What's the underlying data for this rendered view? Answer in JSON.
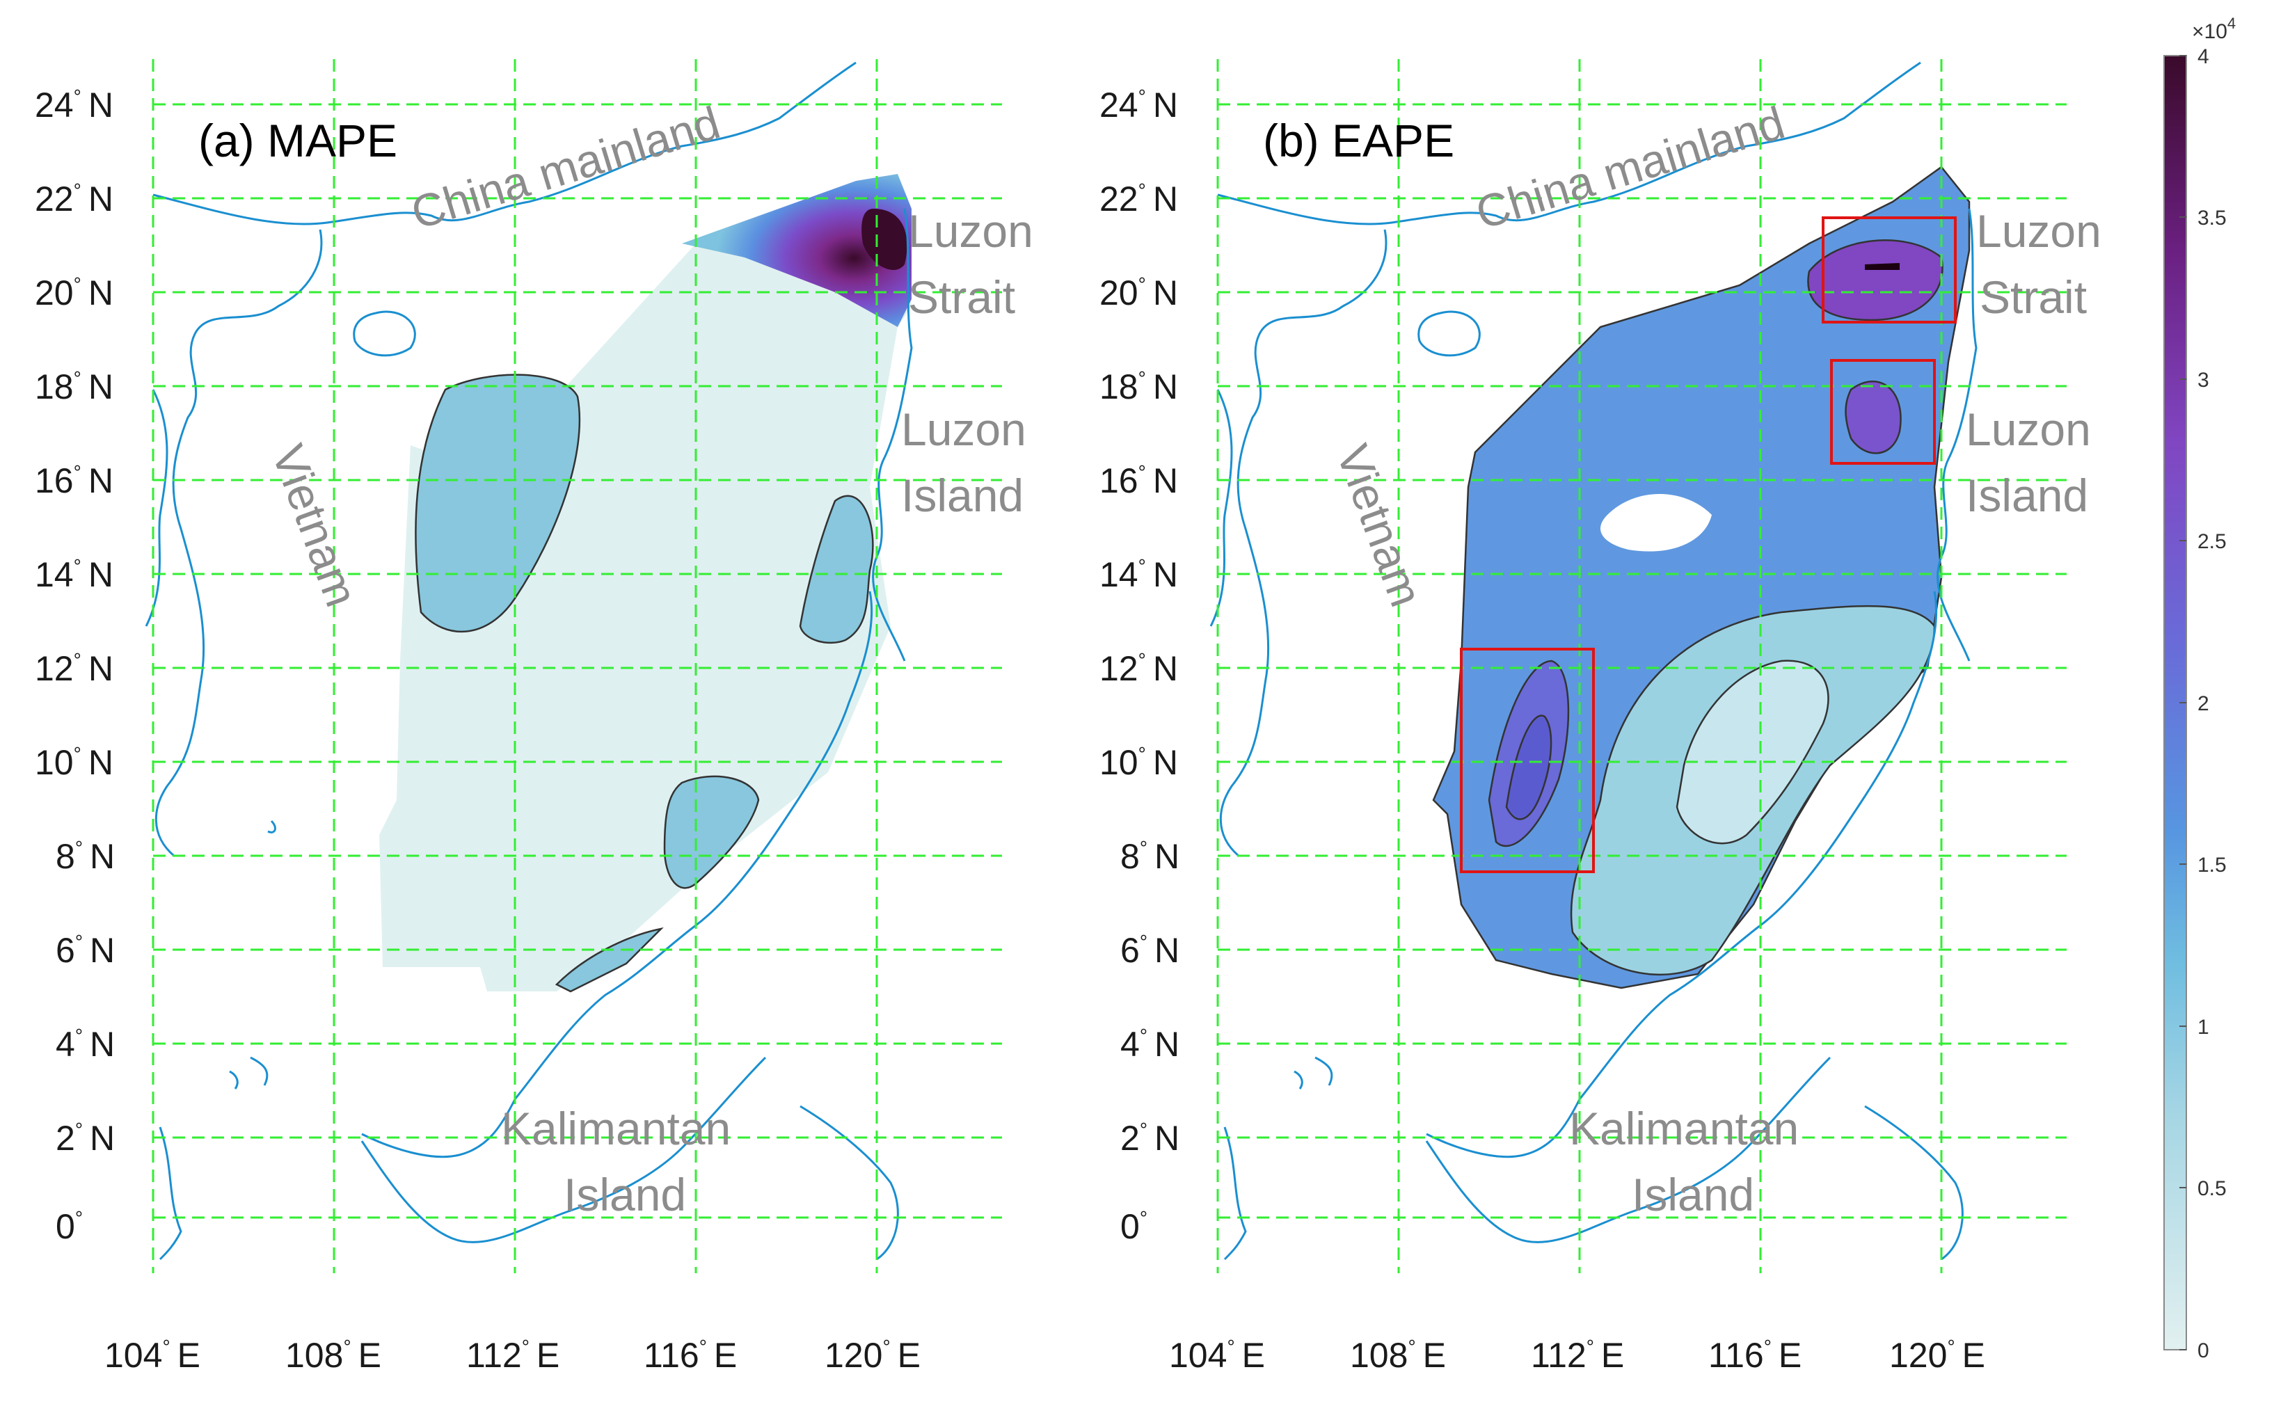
{
  "panels": [
    {
      "title": "(a) MAPE",
      "lat_labels": [
        "24",
        "22",
        "20",
        "18",
        "16",
        "14",
        "12",
        "10",
        "8",
        "6",
        "4",
        "2",
        "0"
      ],
      "lat_suffix": [
        "N",
        "N",
        "N",
        "N",
        "N",
        "N",
        "N",
        "N",
        "N",
        "N",
        "N",
        "N",
        ""
      ],
      "lon_labels": [
        "104",
        "108",
        "112",
        "116",
        "120"
      ],
      "lon_suffix": "E",
      "places": {
        "china": "China mainland",
        "luzon_strait_1": "Luzon",
        "luzon_strait_2": "Strait",
        "luzon_island_1": "Luzon",
        "luzon_island_2": "Island",
        "vietnam": "Vietnam",
        "kalimantan_1": "Kalimantan",
        "kalimantan_2": "Island"
      }
    },
    {
      "title": "(b) EAPE",
      "lat_labels": [
        "24",
        "22",
        "20",
        "18",
        "16",
        "14",
        "12",
        "10",
        "8",
        "6",
        "4",
        "2",
        "0"
      ],
      "lat_suffix": [
        "N",
        "N",
        "N",
        "N",
        "N",
        "N",
        "N",
        "N",
        "N",
        "N",
        "N",
        "N",
        ""
      ],
      "lon_labels": [
        "104",
        "108",
        "112",
        "116",
        "120"
      ],
      "lon_suffix": "E",
      "places": {
        "china": "China mainland",
        "luzon_strait_1": "Luzon",
        "luzon_strait_2": "Strait",
        "luzon_island_1": "Luzon",
        "luzon_island_2": "Island",
        "vietnam": "Vietnam",
        "kalimantan_1": "Kalimantan",
        "kalimantan_2": "Island"
      }
    }
  ],
  "colorbar": {
    "multiplier": "×10",
    "exponent": "4",
    "ticks": [
      "4",
      "3.5",
      "3",
      "2.5",
      "2",
      "1.5",
      "1",
      "0.5",
      "0"
    ],
    "range": [
      0,
      4
    ],
    "colors": {
      "low": "#e2f0f0",
      "mid1": "#7ec3df",
      "mid2": "#5b8fe0",
      "mid3": "#7b4cc8",
      "high": "#3a0a2a"
    }
  },
  "map_extent": {
    "lon": [
      103,
      123
    ],
    "lat": [
      -1,
      25
    ]
  },
  "colors": {
    "grid": "#33ee33",
    "coast": "#1a8fd0",
    "highlight_box": "#e01414"
  }
}
